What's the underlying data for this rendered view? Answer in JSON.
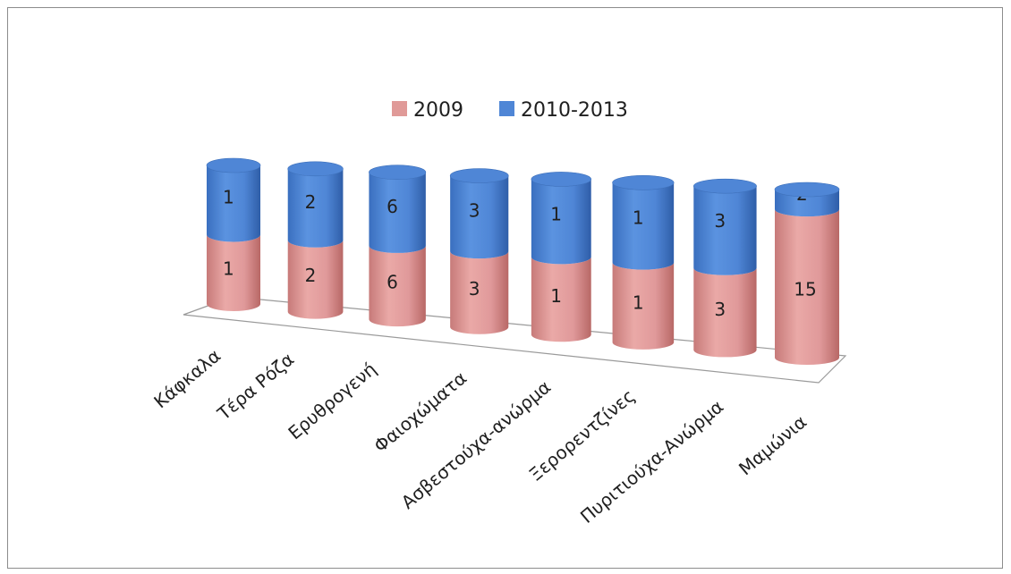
{
  "chart_data": {
    "type": "bar",
    "stacked": true,
    "style": "3d-cylinder",
    "categories": [
      "Κάφκαλα",
      "Τέρα Ρόζα",
      "Ερυθρογενή",
      "Φαιοχώματα",
      "Ασβεστούχα-ανώρμα",
      "Ξερορεντζίνες",
      "Πυριτιούχα-Ανώρμα",
      "Μαμώνια"
    ],
    "series": [
      {
        "name": "2009",
        "values": [
          1,
          2,
          6,
          3,
          1,
          1,
          3,
          15
        ],
        "color": "#e09a98"
      },
      {
        "name": "2010-2013",
        "values": [
          1,
          2,
          6,
          3,
          1,
          1,
          3,
          2
        ],
        "color": "#4f86d6"
      }
    ],
    "data_labels": true,
    "legend_position": "top",
    "grid": false,
    "title": "",
    "xlabel": "",
    "ylabel": ""
  }
}
